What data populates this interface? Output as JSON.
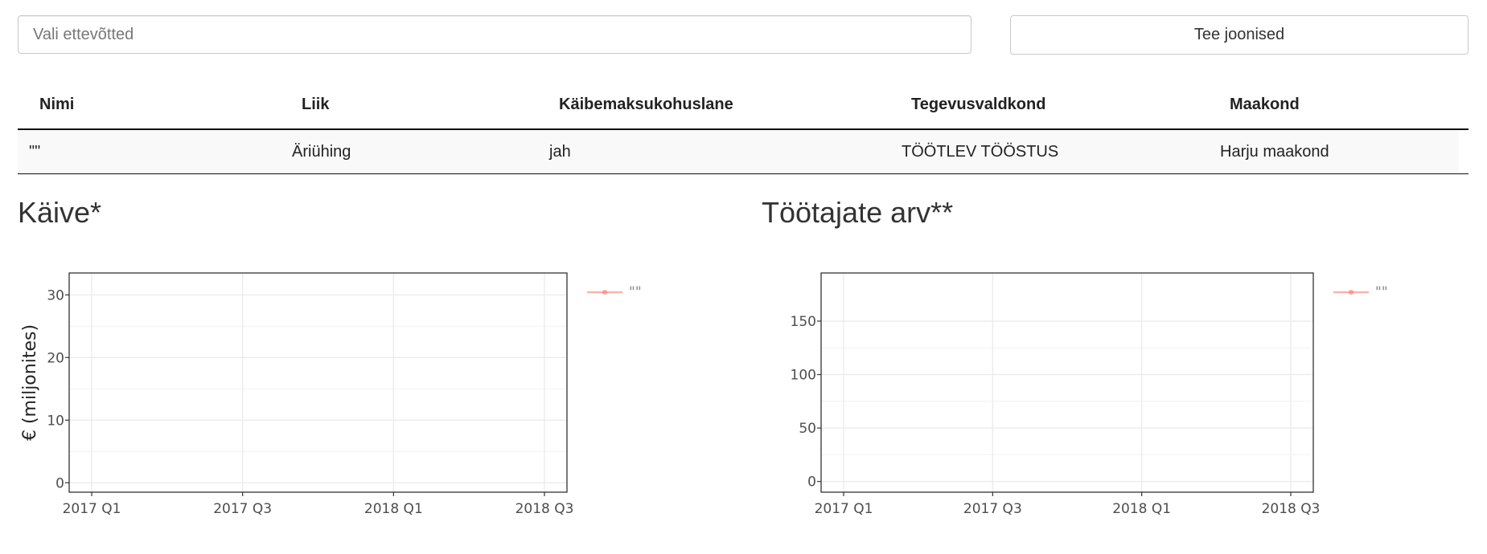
{
  "search": {
    "placeholder": "Vali ettevõtted"
  },
  "button": {
    "label": "Tee joonised"
  },
  "table": {
    "columns": [
      "Nimi",
      "Liik",
      "Käibemaksukohuslane",
      "Tegevusvaldkond",
      "Maakond"
    ],
    "rows": [
      [
        "\"\"",
        "Äriühing",
        "jah",
        "TÖÖTLEV TÖÖSTUS",
        "Harju maakond"
      ]
    ]
  },
  "panels": {
    "left_title": "Käive*",
    "right_title": "Töötajate arv**"
  },
  "chart_data": [
    {
      "type": "line",
      "title": "Käive*",
      "xlabel": "",
      "ylabel": "€ (miljonites)",
      "x_ticks": [
        "2017 Q1",
        "2017 Q3",
        "2018 Q1",
        "2018 Q3"
      ],
      "y_ticks": [
        0,
        10,
        20,
        30
      ],
      "ylim": [
        -1.5,
        33.5
      ],
      "grid": true,
      "legend_position": "right",
      "series": [
        {
          "name": "\"\"",
          "color": "#f8766d",
          "values": []
        }
      ]
    },
    {
      "type": "line",
      "title": "Töötajate arv**",
      "xlabel": "",
      "ylabel": "",
      "x_ticks": [
        "2017 Q1",
        "2017 Q3",
        "2018 Q1",
        "2018 Q3"
      ],
      "y_ticks": [
        0,
        50,
        100,
        150
      ],
      "ylim": [
        -10,
        195
      ],
      "grid": true,
      "legend_position": "right",
      "series": [
        {
          "name": "\"\"",
          "color": "#f8766d",
          "values": []
        }
      ]
    }
  ]
}
